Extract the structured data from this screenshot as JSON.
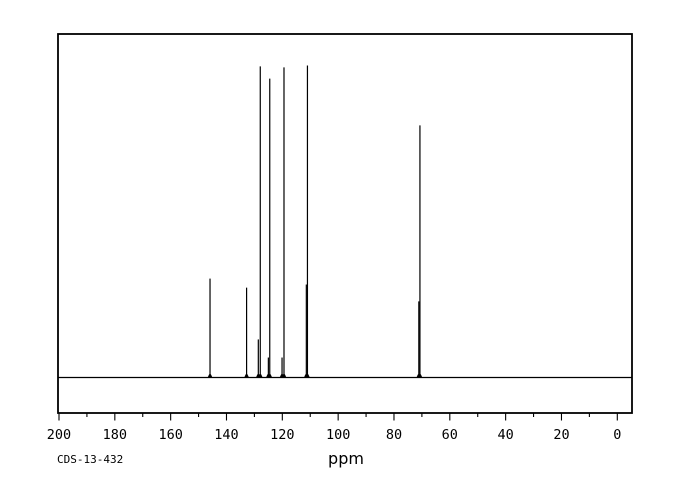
{
  "page": {
    "background_color": "#ffffff",
    "line_color": "#000000"
  },
  "footer": {
    "sample_id": "CDS-13-432"
  },
  "chart_data": {
    "type": "line",
    "subtype": "nmr-spectrum",
    "title": "",
    "xlabel": "ppm",
    "ylabel": "",
    "x_axis": {
      "min": 0,
      "max": 200,
      "reversed": true,
      "major_ticks": [
        200,
        180,
        160,
        140,
        120,
        100,
        80,
        60,
        40,
        20,
        0
      ],
      "minor_tick_step": 10,
      "unit": "ppm"
    },
    "y_axis": {
      "visible": false,
      "intensity_scale": "relative"
    },
    "grid": false,
    "legend": false,
    "baseline_intensity": 0,
    "peaks": [
      {
        "ppm": 145.9,
        "intensity": 0.317
      },
      {
        "ppm": 132.8,
        "intensity": 0.288
      },
      {
        "ppm": 128.6,
        "intensity": 0.122
      },
      {
        "ppm": 127.9,
        "intensity": 0.997
      },
      {
        "ppm": 125.0,
        "intensity": 0.064
      },
      {
        "ppm": 124.5,
        "intensity": 0.958
      },
      {
        "ppm": 120.1,
        "intensity": 0.064
      },
      {
        "ppm": 119.4,
        "intensity": 0.994
      },
      {
        "ppm": 111.4,
        "intensity": 0.298
      },
      {
        "ppm": 111.0,
        "intensity": 1.0
      },
      {
        "ppm": 71.1,
        "intensity": 0.244
      },
      {
        "ppm": 70.7,
        "intensity": 0.808
      }
    ]
  }
}
